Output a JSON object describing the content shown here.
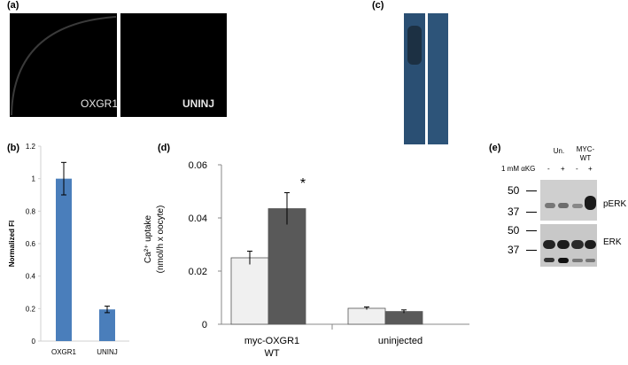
{
  "panels": {
    "a": {
      "label": "(a)",
      "images": [
        {
          "caption": "OXGR1"
        },
        {
          "caption": "UNINJ"
        }
      ]
    },
    "b": {
      "label": "(b)"
    },
    "c": {
      "label": "(c)"
    },
    "d": {
      "label": "(d)"
    },
    "e": {
      "label": "(e)",
      "col_groups": [
        "Un.",
        "MYC-\nWT"
      ],
      "treatment_label": "1 mM αKG",
      "signs": [
        "-",
        "+",
        "-",
        "+"
      ],
      "blots": [
        {
          "name": "pERK",
          "markers": [
            "50",
            "37"
          ]
        },
        {
          "name": "ERK",
          "markers": [
            "50",
            "37"
          ]
        }
      ]
    }
  },
  "colors": {
    "bar_blue": "#4a7ebb",
    "bar_light": "#f0f0f0",
    "bar_dark": "#595959",
    "blot_blue": "#2a4f73"
  },
  "chart_data": [
    {
      "panel": "b",
      "type": "bar",
      "categories": [
        "OXGR1",
        "UNINJ"
      ],
      "values": [
        1.0,
        0.195
      ],
      "errors": [
        0.1,
        0.02
      ],
      "ylabel": "Normalized FI",
      "xlabel": "",
      "ylim": [
        0,
        1.2
      ],
      "yticks": [
        "0",
        "0.2",
        "0.4",
        "0.6",
        "0.8",
        "1",
        "1.2"
      ]
    },
    {
      "panel": "d",
      "type": "bar",
      "categories": [
        "myc-OXGR1\nWT",
        "uninjected"
      ],
      "series": [
        {
          "values": [
            0.025,
            0.006
          ],
          "errors": [
            0.0025,
            0.0005
          ]
        },
        {
          "values": [
            0.0435,
            0.0048
          ],
          "errors": [
            0.006,
            0.0006
          ]
        }
      ],
      "ylabel_line1": "Ca²⁺ uptake",
      "ylabel_line2": "(nmol/h x oocyte)",
      "ylim": [
        0,
        0.06
      ],
      "yticks": [
        "0",
        "0.02",
        "0.04",
        "0.06"
      ],
      "annotation": "*"
    }
  ]
}
